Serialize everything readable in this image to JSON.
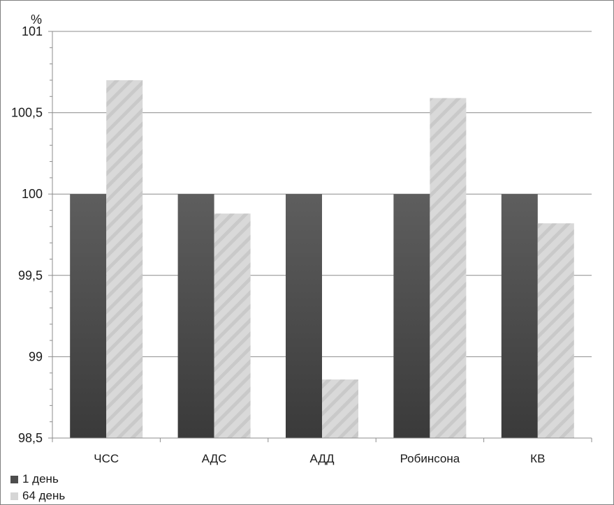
{
  "chart_data": {
    "type": "bar",
    "ylabel": "%",
    "ylim": [
      98.5,
      101
    ],
    "yticks": [
      "98,5",
      "99",
      "99,5",
      "100",
      "100,5",
      "101"
    ],
    "categories": [
      "ЧСС",
      "АДС",
      "АДД",
      "Робинсона",
      "КВ"
    ],
    "series": [
      {
        "name": "1 день",
        "values": [
          100,
          100,
          100,
          100,
          100
        ],
        "color": "#4d4d4d"
      },
      {
        "name": "64 день",
        "values": [
          100.7,
          99.88,
          98.86,
          100.59,
          99.82
        ],
        "color": "#d6d6d6"
      }
    ],
    "grid": true,
    "legend_position": "bottom-left"
  }
}
